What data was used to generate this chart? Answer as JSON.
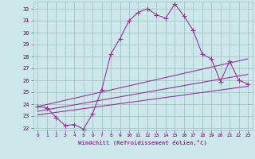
{
  "xlabel": "Windchill (Refroidissement éolien,°C)",
  "bg_color": "#cce8ea",
  "grid_color": "#9bbfc2",
  "line_color": "#993399",
  "xlim": [
    -0.5,
    23.5
  ],
  "ylim": [
    21.8,
    32.6
  ],
  "yticks": [
    22,
    23,
    24,
    25,
    26,
    27,
    28,
    29,
    30,
    31,
    32
  ],
  "xticks": [
    0,
    1,
    2,
    3,
    4,
    5,
    6,
    7,
    8,
    9,
    10,
    11,
    12,
    13,
    14,
    15,
    16,
    17,
    18,
    19,
    20,
    21,
    22,
    23
  ],
  "series1_x": [
    0,
    1,
    2,
    3,
    4,
    5,
    6,
    7,
    8,
    9,
    10,
    11,
    12,
    13,
    14,
    15,
    16,
    17,
    18,
    19,
    20,
    21,
    22,
    23
  ],
  "series1_y": [
    23.8,
    23.7,
    22.9,
    22.2,
    22.3,
    21.9,
    23.2,
    25.2,
    28.2,
    29.5,
    31.0,
    31.7,
    32.0,
    31.5,
    31.2,
    32.4,
    31.4,
    30.2,
    28.2,
    27.8,
    25.9,
    27.6,
    26.0,
    25.7
  ],
  "series2_x": [
    0,
    23
  ],
  "series2_y": [
    23.8,
    27.8
  ],
  "series3_x": [
    0,
    23
  ],
  "series3_y": [
    23.4,
    26.5
  ],
  "series4_x": [
    0,
    23
  ],
  "series4_y": [
    23.1,
    25.5
  ]
}
